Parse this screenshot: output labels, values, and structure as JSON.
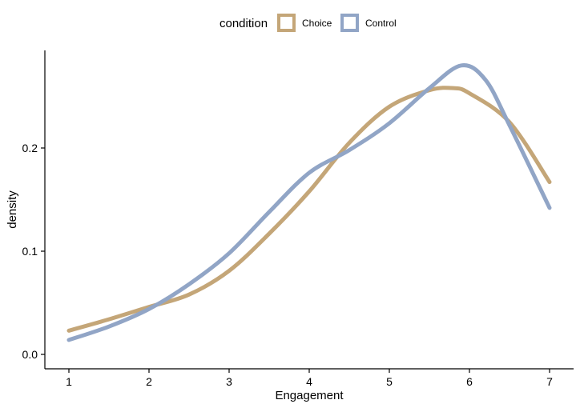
{
  "chart_data": {
    "type": "line",
    "title": "",
    "xlabel": "Engagement",
    "ylabel": "density",
    "xlim": [
      1,
      7
    ],
    "ylim": [
      0,
      0.28
    ],
    "x_ticks": [
      1,
      2,
      3,
      4,
      5,
      6,
      7
    ],
    "y_ticks": [
      0.0,
      0.1,
      0.2
    ],
    "y_tick_labels": [
      "0.0",
      "0.1",
      "0.2"
    ],
    "grid": false,
    "legend": {
      "title": "condition",
      "placement": "top"
    },
    "series": [
      {
        "name": "Choice",
        "color": "#c4a678",
        "x": [
          1,
          1.5,
          2,
          2.5,
          3,
          3.5,
          4,
          4.5,
          5,
          5.5,
          5.8,
          6,
          6.5,
          7
        ],
        "y": [
          0.023,
          0.034,
          0.046,
          0.058,
          0.081,
          0.117,
          0.158,
          0.205,
          0.24,
          0.256,
          0.258,
          0.253,
          0.225,
          0.167
        ]
      },
      {
        "name": "Control",
        "color": "#91a5c6",
        "x": [
          1,
          1.5,
          2,
          2.5,
          3,
          3.5,
          4,
          4.5,
          5,
          5.5,
          5.9,
          6.2,
          6.5,
          7
        ],
        "y": [
          0.014,
          0.027,
          0.044,
          0.068,
          0.098,
          0.138,
          0.176,
          0.198,
          0.224,
          0.258,
          0.28,
          0.266,
          0.222,
          0.142
        ]
      }
    ]
  }
}
